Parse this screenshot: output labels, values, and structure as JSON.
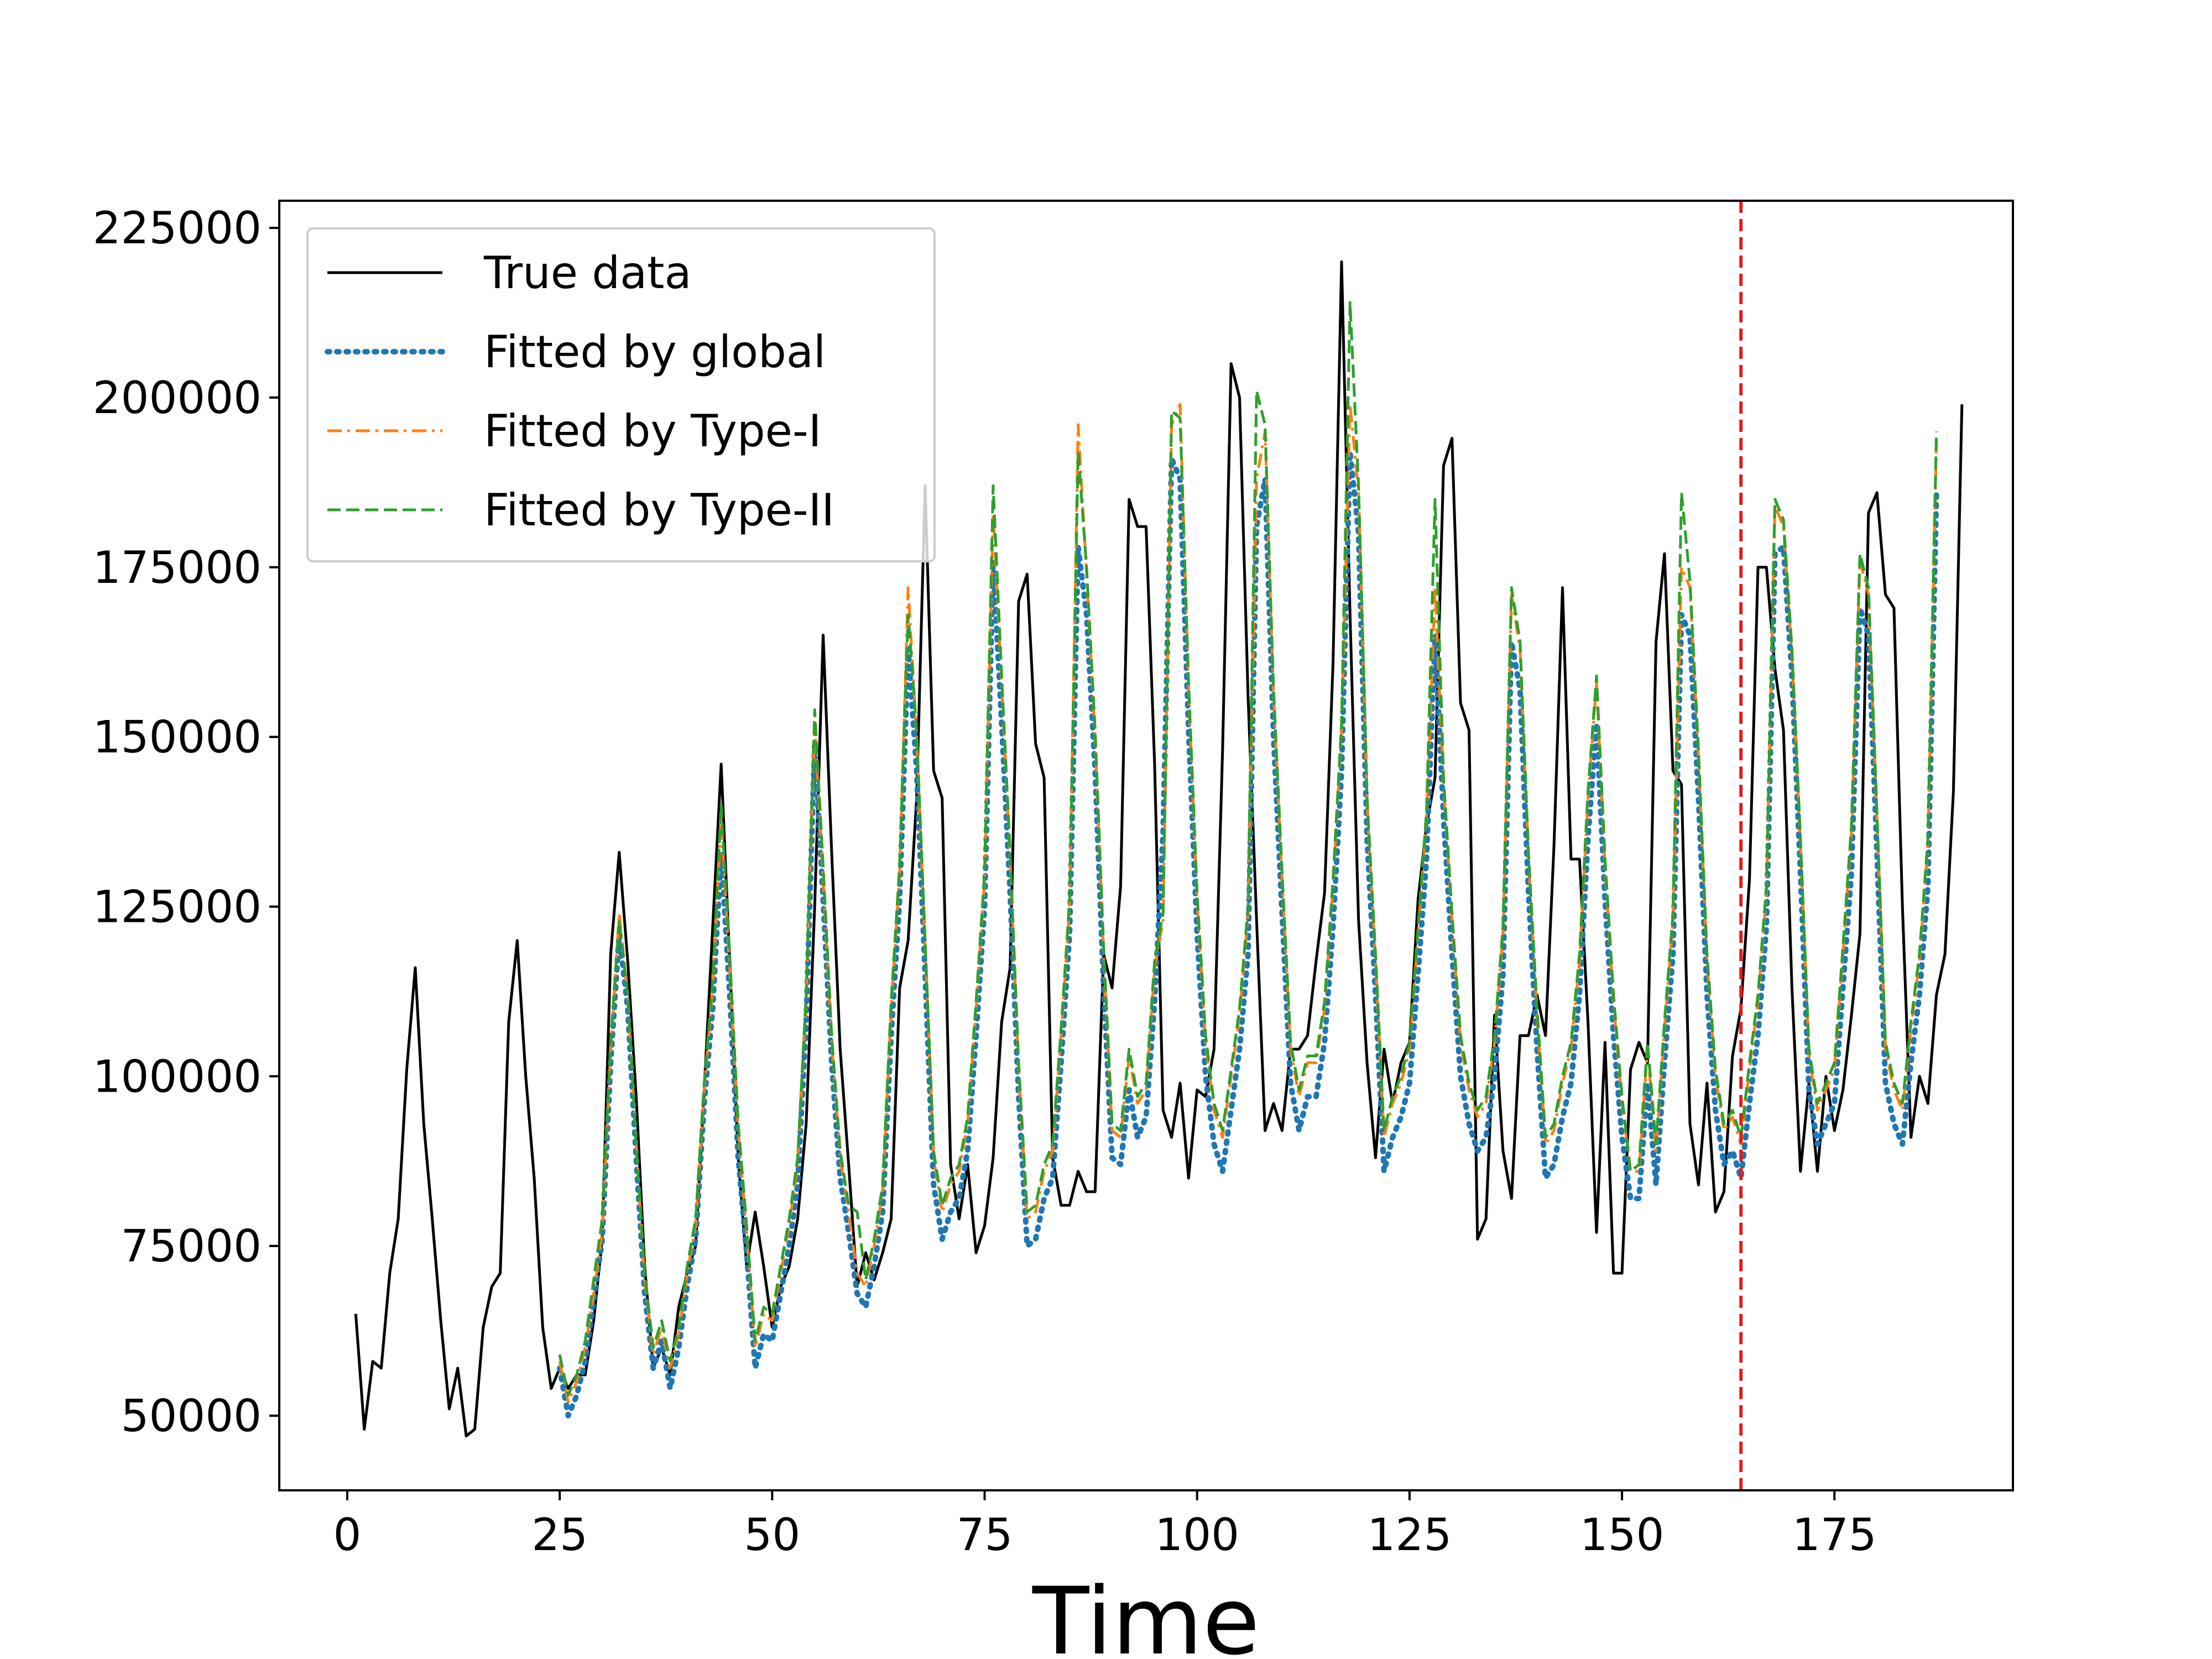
{
  "chart_data": {
    "type": "line",
    "title": "",
    "xlabel": "Time",
    "ylabel": "",
    "xlim": [
      -8,
      196
    ],
    "ylim": [
      39000,
      229000
    ],
    "xticks": [
      0,
      25,
      50,
      75,
      100,
      125,
      150,
      175
    ],
    "yticks": [
      50000,
      75000,
      100000,
      125000,
      150000,
      175000,
      200000,
      225000
    ],
    "grid": false,
    "legend_position": "top-left",
    "vertical_marker": {
      "x": 164,
      "color": "#e41a1c",
      "style": "dashed"
    },
    "series": [
      {
        "name": "True data",
        "color": "#000000",
        "style": "solid",
        "x_start": 1,
        "values": [
          65000,
          48000,
          58000,
          57000,
          71000,
          79000,
          101000,
          116000,
          93000,
          79000,
          64000,
          51000,
          57000,
          47000,
          48000,
          63000,
          69000,
          71000,
          108000,
          120000,
          100000,
          85000,
          63000,
          54000,
          57000,
          54000,
          56000,
          56000,
          64000,
          76000,
          118000,
          133000,
          117000,
          97000,
          72000,
          57000,
          60000,
          56000,
          66000,
          71000,
          75000,
          98000,
          122000,
          146000,
          117000,
          88000,
          72000,
          80000,
          72000,
          63000,
          69000,
          72000,
          79000,
          93000,
          125000,
          165000,
          133000,
          104000,
          87000,
          69000,
          74000,
          70000,
          74000,
          79000,
          113000,
          120000,
          141000,
          187000,
          145000,
          141000,
          87000,
          79000,
          87000,
          74000,
          78000,
          88000,
          108000,
          116000,
          170000,
          174000,
          149000,
          144000,
          88000,
          81000,
          81000,
          86000,
          83000,
          83000,
          118000,
          113000,
          128000,
          185000,
          181000,
          181000,
          146000,
          95000,
          91000,
          99000,
          85000,
          98000,
          97000,
          104000,
          148000,
          205000,
          200000,
          156000,
          123000,
          92000,
          96000,
          92000,
          104000,
          104000,
          106000,
          117000,
          127000,
          161000,
          220000,
          168000,
          123000,
          102000,
          88000,
          104000,
          96000,
          102000,
          105000,
          126000,
          137000,
          144000,
          190000,
          194000,
          155000,
          151000,
          76000,
          79000,
          109000,
          89000,
          82000,
          106000,
          106000,
          112000,
          106000,
          134000,
          172000,
          132000,
          132000,
          108000,
          77000,
          105000,
          71000,
          71000,
          101000,
          105000,
          102000,
          164000,
          177000,
          145000,
          143000,
          93000,
          84000,
          99000,
          80000,
          83000,
          103000,
          110000,
          129000,
          175000,
          175000,
          160000,
          151000,
          113000,
          86000,
          99000,
          86000,
          100000,
          92000,
          98000,
          109000,
          121000,
          183000,
          186000,
          171000,
          169000,
          125000,
          91000,
          100000,
          96000,
          112000,
          118000,
          142000,
          199000
        ]
      },
      {
        "name": "Fitted by global",
        "color": "#1f77b4",
        "style": "dotted",
        "x_start": 25,
        "values": [
          57000,
          50000,
          53000,
          58000,
          67000,
          76000,
          102000,
          121000,
          110000,
          88000,
          68000,
          57000,
          61000,
          54000,
          60000,
          69000,
          76000,
          96000,
          110000,
          133000,
          112000,
          88000,
          74000,
          57000,
          62000,
          61000,
          68000,
          75000,
          84000,
          108000,
          149000,
          126000,
          102000,
          85000,
          77000,
          68000,
          66000,
          72000,
          80000,
          106000,
          126000,
          163000,
          145000,
          115000,
          84000,
          76000,
          80000,
          82000,
          89000,
          106000,
          125000,
          176000,
          152000,
          127000,
          97000,
          75000,
          76000,
          82000,
          85000,
          102000,
          121000,
          178000,
          168000,
          145000,
          113000,
          88000,
          87000,
          98000,
          91000,
          94000,
          111000,
          136000,
          191000,
          188000,
          151000,
          121000,
          100000,
          90000,
          86000,
          95000,
          104000,
          118000,
          181000,
          188000,
          150000,
          124000,
          99000,
          92000,
          97000,
          97000,
          105000,
          122000,
          145000,
          192000,
          180000,
          135000,
          112000,
          86000,
          91000,
          94000,
          99000,
          115000,
          132000,
          165000,
          138000,
          118000,
          100000,
          93000,
          89000,
          91000,
          100000,
          115000,
          164000,
          157000,
          127000,
          104000,
          85000,
          87000,
          94000,
          99000,
          112000,
          135000,
          152000,
          126000,
          106000,
          91000,
          82000,
          82000,
          99000,
          84000,
          102000,
          118000,
          168000,
          165000,
          141000,
          112000,
          95000,
          87000,
          89000,
          85000,
          96000,
          106000,
          122000,
          177000,
          178000,
          159000,
          130000,
          98000,
          90000,
          93000,
          96000,
          113000,
          130000,
          169000,
          165000,
          133000,
          99000,
          93000,
          90000,
          102000,
          112000,
          128000,
          186000
        ]
      },
      {
        "name": "Fitted by Type-I",
        "color": "#ff7f0e",
        "style": "dashdot",
        "x_start": 25,
        "values": [
          58000,
          52000,
          55000,
          60000,
          68000,
          77000,
          104000,
          124000,
          112000,
          90000,
          70000,
          59000,
          63000,
          57000,
          62000,
          71000,
          78000,
          98000,
          113000,
          138000,
          116000,
          92000,
          77000,
          60000,
          65000,
          64000,
          71000,
          78000,
          87000,
          111000,
          152000,
          129000,
          105000,
          88000,
          80000,
          71000,
          69000,
          75000,
          83000,
          110000,
          130000,
          172000,
          150000,
          119000,
          88000,
          80000,
          84000,
          86000,
          93000,
          110000,
          129000,
          183000,
          158000,
          132000,
          101000,
          79000,
          80000,
          86000,
          89000,
          106000,
          125000,
          196000,
          174000,
          150000,
          118000,
          92000,
          91000,
          103000,
          96000,
          98000,
          116000,
          123000,
          196000,
          199000,
          157000,
          126000,
          105000,
          95000,
          91000,
          100000,
          109000,
          124000,
          188000,
          195000,
          156000,
          129000,
          104000,
          97000,
          102000,
          102000,
          110000,
          128000,
          151000,
          199000,
          186000,
          140000,
          117000,
          91000,
          96000,
          99000,
          104000,
          121000,
          138000,
          172000,
          143000,
          123000,
          105000,
          98000,
          94000,
          96000,
          105000,
          121000,
          171000,
          163000,
          132000,
          109000,
          90000,
          92000,
          99000,
          104000,
          117000,
          141000,
          158000,
          131000,
          111000,
          96000,
          86000,
          86000,
          104000,
          89000,
          107000,
          123000,
          175000,
          172000,
          147000,
          117000,
          100000,
          92000,
          94000,
          90000,
          101000,
          111000,
          127000,
          184000,
          181000,
          162000,
          134000,
          103000,
          95000,
          98000,
          101000,
          118000,
          136000,
          176000,
          171000,
          138000,
          104000,
          98000,
          95000,
          107000,
          117000,
          134000,
          194000
        ]
      },
      {
        "name": "Fitted by Type-II",
        "color": "#2ca02c",
        "style": "dashed",
        "x_start": 25,
        "values": [
          59000,
          53000,
          56000,
          61000,
          70000,
          79000,
          105000,
          123000,
          112000,
          90000,
          71000,
          60000,
          64000,
          58000,
          63000,
          72000,
          79000,
          99000,
          114000,
          140000,
          118000,
          93000,
          78000,
          61000,
          66000,
          65000,
          72000,
          79000,
          88000,
          112000,
          154000,
          131000,
          106000,
          89000,
          81000,
          80000,
          70000,
          76000,
          84000,
          111000,
          131000,
          168000,
          151000,
          120000,
          89000,
          81000,
          85000,
          87000,
          94000,
          111000,
          130000,
          187000,
          159000,
          133000,
          102000,
          80000,
          81000,
          87000,
          90000,
          107000,
          126000,
          192000,
          175000,
          151000,
          119000,
          93000,
          92000,
          104000,
          97000,
          99000,
          117000,
          124000,
          198000,
          197000,
          158000,
          127000,
          106000,
          96000,
          92000,
          101000,
          110000,
          125000,
          201000,
          196000,
          157000,
          130000,
          105000,
          98000,
          103000,
          103000,
          111000,
          129000,
          152000,
          214000,
          187000,
          141000,
          118000,
          92000,
          97000,
          100000,
          105000,
          122000,
          139000,
          185000,
          144000,
          124000,
          106000,
          99000,
          95000,
          97000,
          106000,
          122000,
          172000,
          164000,
          133000,
          110000,
          91000,
          93000,
          100000,
          105000,
          118000,
          142000,
          159000,
          132000,
          112000,
          97000,
          86000,
          87000,
          105000,
          90000,
          108000,
          124000,
          186000,
          173000,
          148000,
          118000,
          101000,
          93000,
          95000,
          91000,
          102000,
          112000,
          128000,
          185000,
          182000,
          163000,
          135000,
          104000,
          96000,
          99000,
          102000,
          119000,
          137000,
          177000,
          172000,
          139000,
          105000,
          99000,
          96000,
          108000,
          118000,
          135000,
          195000
        ]
      }
    ]
  }
}
